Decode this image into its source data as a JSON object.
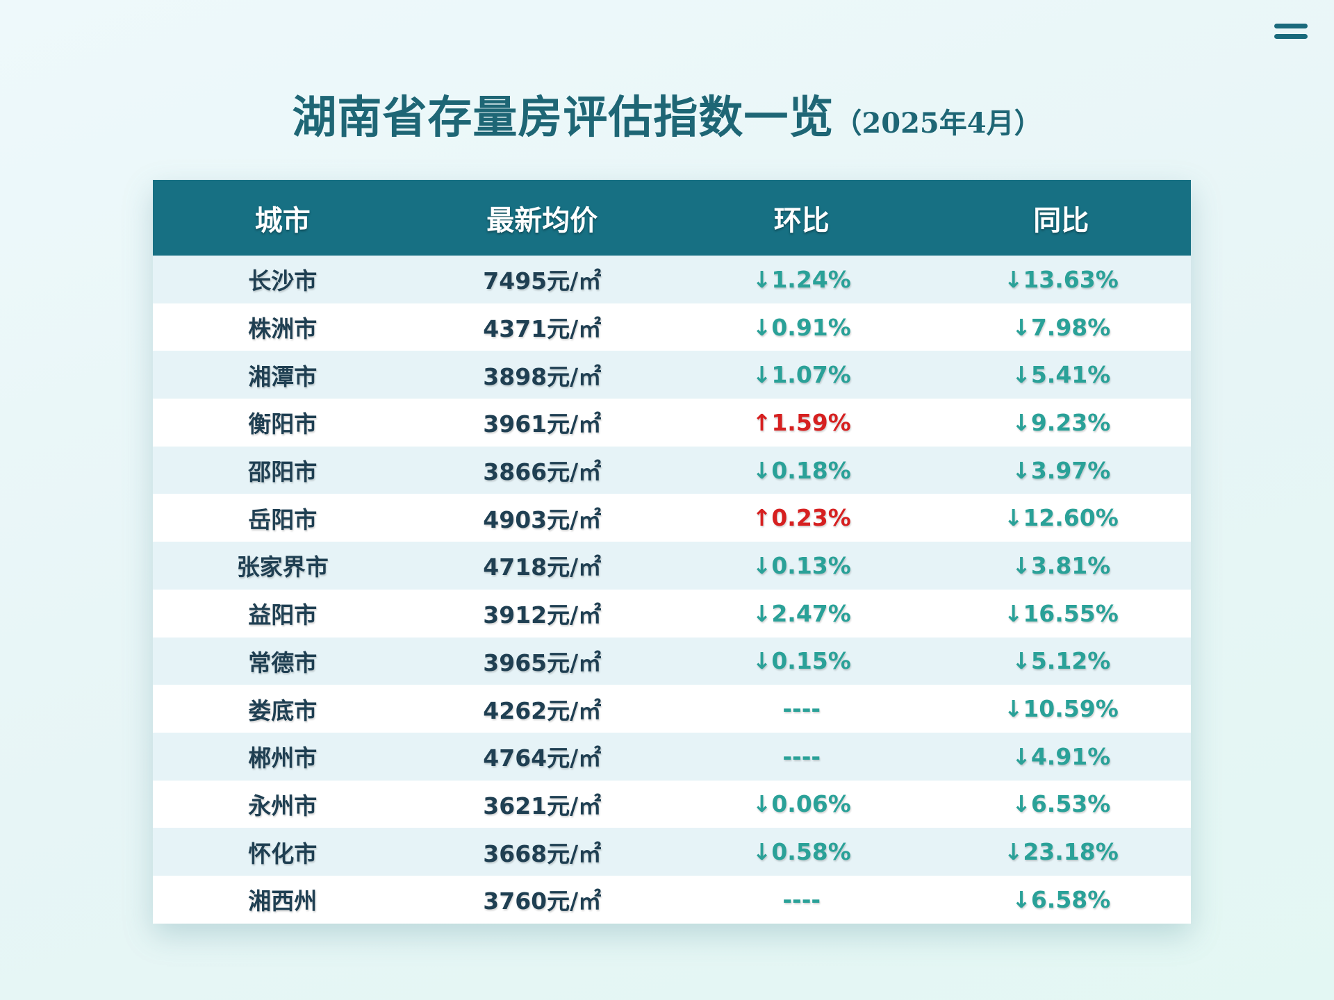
{
  "title": {
    "main": "湖南省存量房评估指数一览",
    "sub": "（2025年4月）"
  },
  "menu_icon": "hamburger-menu-icon",
  "colors": {
    "header_bg": "#177083",
    "title": "#1e6675",
    "down": "#2aa198",
    "up": "#d62020",
    "stripe": "#e6f3f7"
  },
  "table": {
    "headers": [
      "城市",
      "最新均价",
      "环比",
      "同比"
    ],
    "rows": [
      {
        "city": "长沙市",
        "price": "7495元/㎡",
        "mom": "↓1.24%",
        "mom_dir": "down",
        "yoy": "↓13.63%",
        "yoy_dir": "down"
      },
      {
        "city": "株洲市",
        "price": "4371元/㎡",
        "mom": "↓0.91%",
        "mom_dir": "down",
        "yoy": "↓7.98%",
        "yoy_dir": "down"
      },
      {
        "city": "湘潭市",
        "price": "3898元/㎡",
        "mom": "↓1.07%",
        "mom_dir": "down",
        "yoy": "↓5.41%",
        "yoy_dir": "down"
      },
      {
        "city": "衡阳市",
        "price": "3961元/㎡",
        "mom": "↑1.59%",
        "mom_dir": "up",
        "yoy": "↓9.23%",
        "yoy_dir": "down"
      },
      {
        "city": "邵阳市",
        "price": "3866元/㎡",
        "mom": "↓0.18%",
        "mom_dir": "down",
        "yoy": "↓3.97%",
        "yoy_dir": "down"
      },
      {
        "city": "岳阳市",
        "price": "4903元/㎡",
        "mom": "↑0.23%",
        "mom_dir": "up",
        "yoy": "↓12.60%",
        "yoy_dir": "down"
      },
      {
        "city": "张家界市",
        "price": "4718元/㎡",
        "mom": "↓0.13%",
        "mom_dir": "down",
        "yoy": "↓3.81%",
        "yoy_dir": "down"
      },
      {
        "city": "益阳市",
        "price": "3912元/㎡",
        "mom": "↓2.47%",
        "mom_dir": "down",
        "yoy": "↓16.55%",
        "yoy_dir": "down"
      },
      {
        "city": "常德市",
        "price": "3965元/㎡",
        "mom": "↓0.15%",
        "mom_dir": "down",
        "yoy": "↓5.12%",
        "yoy_dir": "down"
      },
      {
        "city": "娄底市",
        "price": "4262元/㎡",
        "mom": "----",
        "mom_dir": "none",
        "yoy": "↓10.59%",
        "yoy_dir": "down"
      },
      {
        "city": "郴州市",
        "price": "4764元/㎡",
        "mom": "----",
        "mom_dir": "none",
        "yoy": "↓4.91%",
        "yoy_dir": "down"
      },
      {
        "city": "永州市",
        "price": "3621元/㎡",
        "mom": "↓0.06%",
        "mom_dir": "down",
        "yoy": "↓6.53%",
        "yoy_dir": "down"
      },
      {
        "city": "怀化市",
        "price": "3668元/㎡",
        "mom": "↓0.58%",
        "mom_dir": "down",
        "yoy": "↓23.18%",
        "yoy_dir": "down"
      },
      {
        "city": "湘西州",
        "price": "3760元/㎡",
        "mom": "----",
        "mom_dir": "none",
        "yoy": "↓6.58%",
        "yoy_dir": "down"
      }
    ]
  }
}
